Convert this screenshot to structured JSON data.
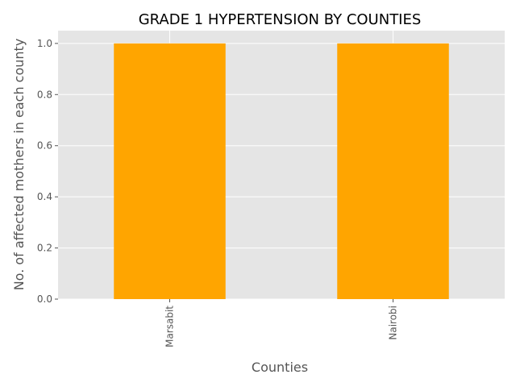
{
  "chart_data": {
    "type": "bar",
    "title": "GRADE 1 HYPERTENSION BY COUNTIES",
    "xlabel": "Counties",
    "ylabel": "No. of affected mothers in each county",
    "categories": [
      "Marsabit",
      "Nairobi"
    ],
    "values": [
      1.0,
      1.0
    ],
    "ylim": [
      0,
      1.05
    ],
    "yticks": [
      0.0,
      0.2,
      0.4,
      0.6,
      0.8,
      1.0
    ],
    "ytick_labels": [
      "0.0",
      "0.2",
      "0.4",
      "0.6",
      "0.8",
      "1.0"
    ],
    "bar_color": "#ffa500",
    "background_color": "#e5e5e5",
    "grid_color": "#ffffff",
    "grid": true,
    "xtick_rotation": "vertical",
    "legend": "none"
  }
}
